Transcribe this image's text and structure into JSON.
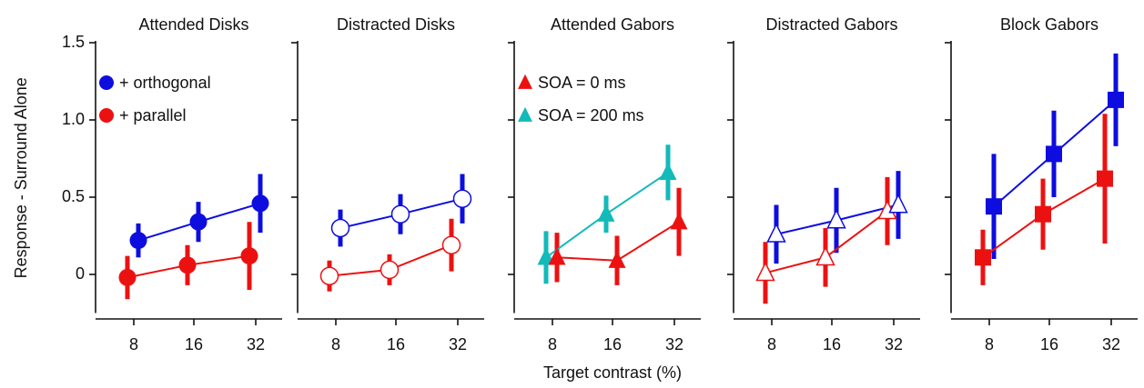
{
  "chart_data": [
    {
      "type": "line",
      "title": "Attended Disks",
      "ylabel": "Response - Surround Alone",
      "categories": [
        "8",
        "16",
        "32"
      ],
      "ylim": [
        -0.25,
        1.5
      ],
      "yticks": [
        0,
        0.5,
        {
          "value": 1,
          "label": "1.0"
        },
        1.5
      ],
      "show_ytick_labels": true,
      "marker": "circle",
      "filled": true,
      "legend": "upper left",
      "series": [
        {
          "name": "+ orthogonal",
          "color": "#0d0de0",
          "values": [
            0.22,
            0.34,
            0.46
          ],
          "errors": [
            0.11,
            0.13,
            0.19
          ]
        },
        {
          "name": "+ parallel",
          "color": "#ec1111",
          "values": [
            -0.02,
            0.06,
            0.12
          ],
          "errors": [
            0.14,
            0.13,
            0.22
          ]
        }
      ]
    },
    {
      "type": "line",
      "title": "Distracted Disks",
      "categories": [
        "8",
        "16",
        "32"
      ],
      "ylim": [
        -0.25,
        1.5
      ],
      "yticks": [
        0,
        0.5,
        1,
        1.5
      ],
      "show_ytick_labels": false,
      "marker": "circle",
      "filled": false,
      "series": [
        {
          "color": "#0d0de0",
          "values": [
            0.3,
            0.39,
            0.49
          ],
          "errors": [
            0.12,
            0.13,
            0.16
          ]
        },
        {
          "color": "#ec1111",
          "values": [
            -0.01,
            0.03,
            0.19
          ],
          "errors": [
            0.1,
            0.1,
            0.17
          ]
        }
      ]
    },
    {
      "type": "line",
      "title": "Attended Gabors",
      "xlabel": "Target contrast (%)",
      "categories": [
        "8",
        "16",
        "32"
      ],
      "ylim": [
        -0.25,
        1.5
      ],
      "yticks": [
        0,
        0.5,
        1,
        1.5
      ],
      "show_ytick_labels": false,
      "marker": "triangle",
      "filled": true,
      "legend": "upper left",
      "series": [
        {
          "name": "SOA = 0 ms",
          "color": "#ec1111",
          "values": [
            0.11,
            0.09,
            0.34
          ],
          "errors": [
            0.16,
            0.16,
            0.22
          ]
        },
        {
          "name": "SOA = 200 ms",
          "color": "#13baba",
          "values": [
            0.11,
            0.39,
            0.66
          ],
          "errors": [
            0.17,
            0.12,
            0.18
          ]
        }
      ]
    },
    {
      "type": "line",
      "title": "Distracted Gabors",
      "categories": [
        "8",
        "16",
        "32"
      ],
      "ylim": [
        -0.25,
        1.5
      ],
      "yticks": [
        0,
        0.5,
        1,
        1.5
      ],
      "show_ytick_labels": false,
      "marker": "triangle",
      "filled": false,
      "series": [
        {
          "color": "#0d0de0",
          "values": [
            0.26,
            0.35,
            0.45
          ],
          "errors": [
            0.19,
            0.21,
            0.22
          ]
        },
        {
          "color": "#ec1111",
          "values": [
            0.01,
            0.11,
            0.41
          ],
          "errors": [
            0.2,
            0.19,
            0.22
          ]
        }
      ]
    },
    {
      "type": "line",
      "title": "Block Gabors",
      "categories": [
        "8",
        "16",
        "32"
      ],
      "ylim": [
        -0.25,
        1.5
      ],
      "yticks": [
        0,
        0.5,
        1,
        1.5
      ],
      "show_ytick_labels": false,
      "marker": "square",
      "filled": true,
      "series": [
        {
          "color": "#0d0de0",
          "values": [
            0.44,
            0.78,
            1.13
          ],
          "errors": [
            0.34,
            0.28,
            0.3
          ]
        },
        {
          "color": "#ec1111",
          "values": [
            0.11,
            0.39,
            0.62
          ],
          "errors": [
            0.18,
            0.23,
            0.42
          ]
        }
      ]
    }
  ]
}
